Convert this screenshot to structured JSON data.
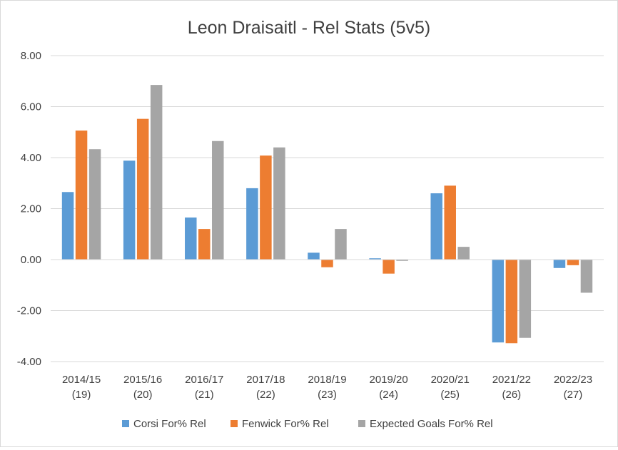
{
  "chart_data": {
    "type": "bar",
    "title": "Leon Draisaitl - Rel Stats (5v5)",
    "categories": [
      [
        "2014/15",
        "(19)"
      ],
      [
        "2015/16",
        "(20)"
      ],
      [
        "2016/17",
        "(21)"
      ],
      [
        "2017/18",
        "(22)"
      ],
      [
        "2018/19",
        "(23)"
      ],
      [
        "2019/20",
        "(24)"
      ],
      [
        "2020/21",
        "(25)"
      ],
      [
        "2021/22",
        "(26)"
      ],
      [
        "2022/23",
        "(27)"
      ]
    ],
    "series": [
      {
        "name": "Corsi For% Rel",
        "color": "#5b9bd5",
        "values": [
          2.65,
          3.88,
          1.65,
          2.8,
          0.27,
          0.05,
          2.6,
          -3.25,
          -0.33
        ]
      },
      {
        "name": "Fenwick For% Rel",
        "color": "#ed7d31",
        "values": [
          5.06,
          5.52,
          1.2,
          4.08,
          -0.3,
          -0.55,
          2.9,
          -3.28,
          -0.22
        ]
      },
      {
        "name": "Expected Goals For% Rel",
        "color": "#a5a5a5",
        "values": [
          4.33,
          6.85,
          4.65,
          4.4,
          1.2,
          -0.05,
          0.5,
          -3.07,
          -1.3
        ]
      }
    ],
    "y_ticks": [
      "8.00",
      "6.00",
      "4.00",
      "2.00",
      "0.00",
      "-2.00",
      "-4.00"
    ],
    "ylim": [
      -4,
      8
    ],
    "grid": true,
    "legend_position": "bottom"
  }
}
